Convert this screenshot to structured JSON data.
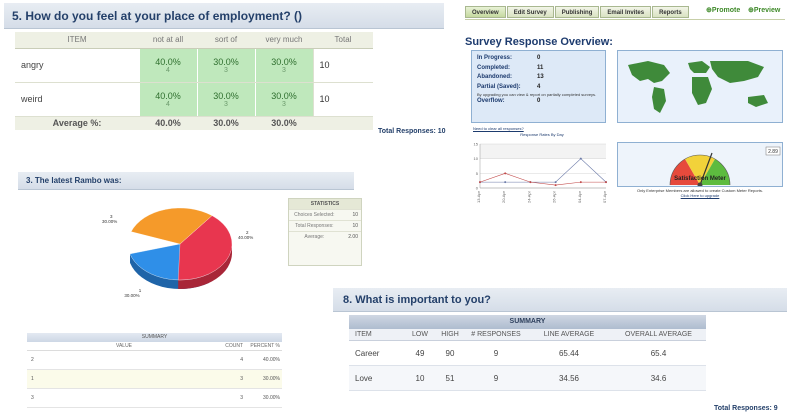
{
  "q5": {
    "title": "5. How do you feel at your place of employment? ()",
    "columns": [
      "ITEM",
      "not at all",
      "sort of",
      "very much",
      "Total"
    ],
    "rows": [
      {
        "item": "angry",
        "cells": [
          {
            "pct": "40.0%",
            "count": "4"
          },
          {
            "pct": "30.0%",
            "count": "3"
          },
          {
            "pct": "30.0%",
            "count": "3"
          }
        ],
        "total": "10"
      },
      {
        "item": "weird",
        "cells": [
          {
            "pct": "40.0%",
            "count": "4"
          },
          {
            "pct": "30.0%",
            "count": "3"
          },
          {
            "pct": "30.0%",
            "count": "3"
          }
        ],
        "total": "10"
      }
    ],
    "average_label": "Average %:",
    "averages": [
      "40.0%",
      "30.0%",
      "30.0%"
    ],
    "total_responses": "Total Responses: 10"
  },
  "tabs": {
    "items": [
      "Overview",
      "Edit Survey",
      "Publishing",
      "Email Invites",
      "Reports"
    ],
    "active": "Overview",
    "promote": "Promote",
    "preview": "Preview"
  },
  "overview": {
    "title": "Survey Response Overview:",
    "stats": [
      {
        "label": "In Progress:",
        "value": "0"
      },
      {
        "label": "Completed:",
        "value": "11"
      },
      {
        "label": "Abandoned:",
        "value": "13"
      },
      {
        "label": "Partial (Saved):",
        "value": "4"
      }
    ],
    "note": "By upgrading you can view & report on partially completed surveys.",
    "overflow_label": "Overflow:",
    "overflow_value": "0",
    "clear_link": "Need to clear all responses?",
    "line_chart_title": "Response Rates By Day",
    "gauge_label": "Satisfaction Meter",
    "gauge_value": "2.89",
    "gauge_note": "Only Enterprise Members are allowed to create Custom Meter Reports.",
    "gauge_link": "Click Here to upgrade"
  },
  "q3": {
    "title": "3. The latest Rambo was:",
    "pie_labels": [
      {
        "id": "3",
        "pct": "30.00%"
      },
      {
        "id": "2",
        "pct": "40.00%"
      },
      {
        "id": "1",
        "pct": "30.00%"
      }
    ],
    "statistics": {
      "header": "STATISTICS",
      "rows": [
        {
          "label": "Choices Selected:",
          "value": "10"
        },
        {
          "label": "Total Responses:",
          "value": "10"
        },
        {
          "label": "Average:",
          "value": "2.00"
        }
      ]
    },
    "summary": {
      "header": "SUMMARY",
      "columns": [
        "VALUE",
        "COUNT",
        "PERCENT %"
      ],
      "rows": [
        {
          "value": "2",
          "count": "4",
          "pct": "40.00%"
        },
        {
          "value": "1",
          "count": "3",
          "pct": "30.00%"
        },
        {
          "value": "3",
          "count": "3",
          "pct": "30.00%"
        }
      ]
    }
  },
  "q8": {
    "title": "8. What is important to you?",
    "summary_header": "SUMMARY",
    "columns": [
      "ITEM",
      "LOW",
      "HIGH",
      "# RESPONSES",
      "LINE AVERAGE",
      "OVERALL AVERAGE"
    ],
    "rows": [
      {
        "item": "Career",
        "low": "49",
        "high": "90",
        "responses": "9",
        "line_avg": "65.44",
        "overall_avg": "65.4"
      },
      {
        "item": "Love",
        "low": "10",
        "high": "51",
        "responses": "9",
        "line_avg": "34.56",
        "overall_avg": "34.6"
      }
    ],
    "total_responses": "Total Responses: 9"
  },
  "chart_data": [
    {
      "type": "line",
      "title": "Response Rates By Day",
      "categories": [
        "13-Apr",
        "20-Apr",
        "24-Apr",
        "26-Apr",
        "04-Apr",
        "07-Apr"
      ],
      "ylim": [
        0,
        15
      ],
      "yticks": [
        "0",
        "5",
        "10",
        "15"
      ],
      "series": [
        {
          "values": [
            2,
            2,
            2,
            2,
            10,
            2
          ]
        },
        {
          "values": [
            2,
            5,
            2,
            1,
            2,
            2
          ]
        }
      ]
    },
    {
      "type": "pie",
      "categories": [
        "1",
        "2",
        "3"
      ],
      "values": [
        30,
        40,
        30
      ]
    }
  ]
}
